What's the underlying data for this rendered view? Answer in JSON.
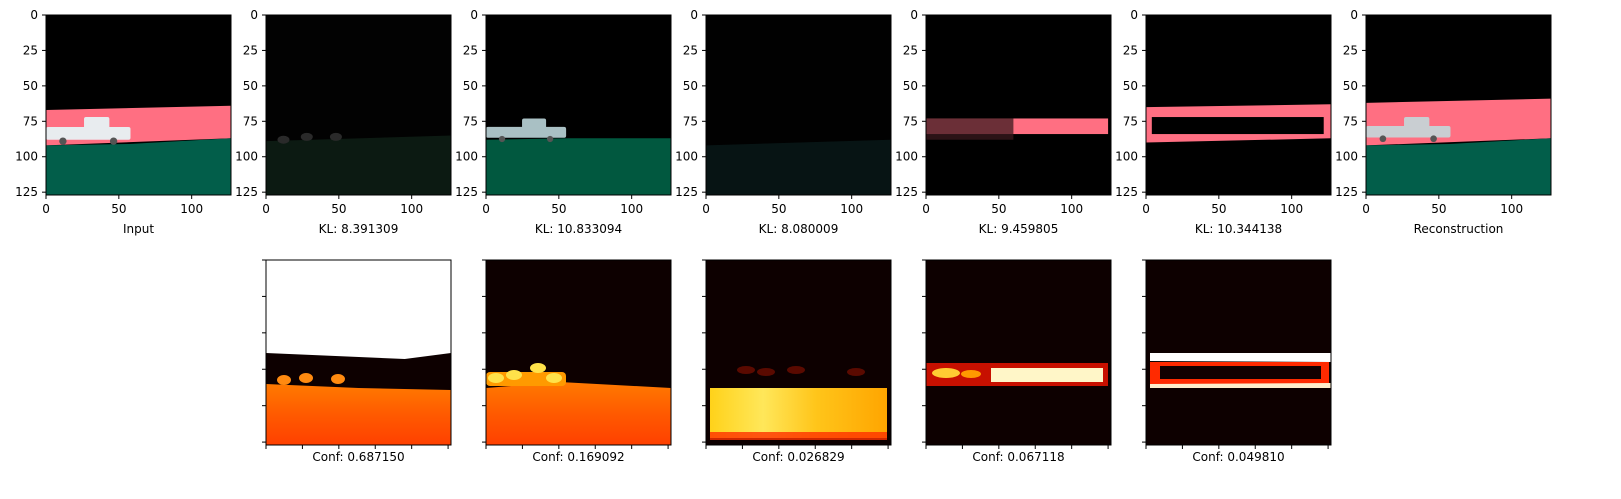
{
  "chart_data": {
    "type": "image-grid",
    "row1": {
      "tick_labels_y": [
        "0",
        "25",
        "50",
        "75",
        "100",
        "125"
      ],
      "tick_labels_x": [
        "0",
        "50",
        "100"
      ],
      "axis_range": [
        0,
        127
      ],
      "captions": [
        "Input",
        "KL: 8.391309",
        "KL: 10.833094",
        "KL: 8.080009",
        "KL: 9.459805",
        "KL: 10.344138",
        "Reconstruction"
      ],
      "panels": [
        {
          "kind": "scene",
          "pink_rows": [
            67,
            92
          ],
          "green_from": 92,
          "green_to": 87,
          "car_x": [
            0,
            58
          ],
          "car_y": [
            72,
            92
          ],
          "car_color": "#e8ecef",
          "pink": "#ff6f82",
          "green": "#025e4a"
        },
        {
          "kind": "dim",
          "top": "#020202",
          "bottom": "#0c1a12",
          "split": 87,
          "blobs": [
            [
              12,
              88
            ],
            [
              28,
              86
            ],
            [
              48,
              86
            ]
          ]
        },
        {
          "kind": "scene",
          "pink_rows": null,
          "green_from": 88,
          "green_to": 87,
          "car_x": [
            0,
            55
          ],
          "car_y": [
            73,
            90
          ],
          "car_color": "#a9c0c4",
          "green": "#01583f"
        },
        {
          "kind": "dim",
          "top": "#010101",
          "bottom": "#071414",
          "split": 90,
          "blobs": []
        },
        {
          "kind": "band",
          "band_y": [
            73,
            84
          ],
          "band_x": [
            0,
            125
          ],
          "color": "#ff6f82",
          "dark_x": [
            0,
            60
          ]
        },
        {
          "kind": "ring",
          "outer_y": [
            65,
            90
          ],
          "inner_y": [
            72,
            84
          ],
          "color": "#ff6f82"
        },
        {
          "kind": "scene",
          "pink_rows": [
            62,
            92
          ],
          "green_from": 92,
          "green_to": 87,
          "car_x": [
            0,
            58
          ],
          "car_y": [
            72,
            90
          ],
          "car_color": "#c9ced2",
          "pink": "#ff6f82",
          "green": "#025e4a"
        }
      ]
    },
    "row2": {
      "captions": [
        "Conf: 0.687150",
        "Conf: 0.169092",
        "Conf: 0.026829",
        "Conf: 0.067118",
        "Conf: 0.049810"
      ],
      "colormap": "hot"
    }
  }
}
